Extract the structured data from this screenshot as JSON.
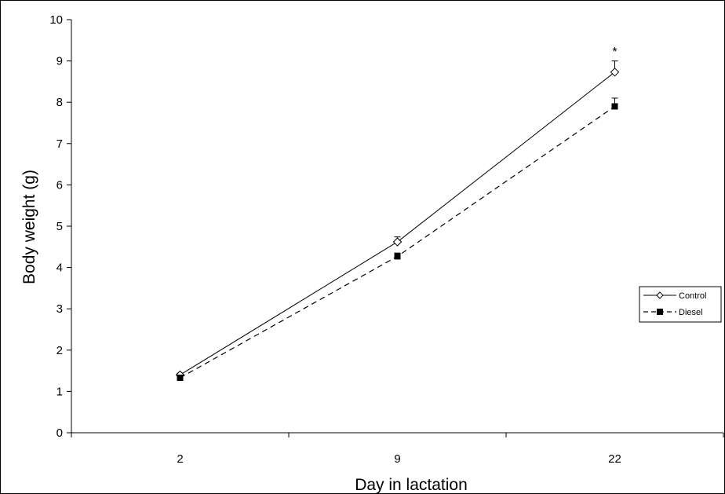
{
  "chart_data": {
    "type": "line",
    "title": "",
    "xlabel": "Day in lactation",
    "ylabel": "Body weight (g)",
    "categories": [
      "2",
      "9",
      "22"
    ],
    "ylim": [
      0,
      10
    ],
    "yticks": [
      "0",
      "1",
      "2",
      "3",
      "4",
      "5",
      "6",
      "7",
      "8",
      "9",
      "10"
    ],
    "grid": false,
    "legend_position": "right",
    "series": [
      {
        "name": "Control",
        "values": [
          1.4,
          4.62,
          8.73
        ],
        "errors": [
          0.04,
          0.12,
          0.27
        ],
        "marker": "open-diamond",
        "line_style": "solid",
        "color": "#000000"
      },
      {
        "name": "Diesel",
        "values": [
          1.33,
          4.27,
          7.9
        ],
        "errors": [
          0.03,
          0.08,
          0.2
        ],
        "marker": "filled-square",
        "line_style": "dashed",
        "color": "#000000"
      }
    ],
    "annotations": [
      {
        "text": "*",
        "category": "22",
        "y": 9.3
      }
    ]
  }
}
